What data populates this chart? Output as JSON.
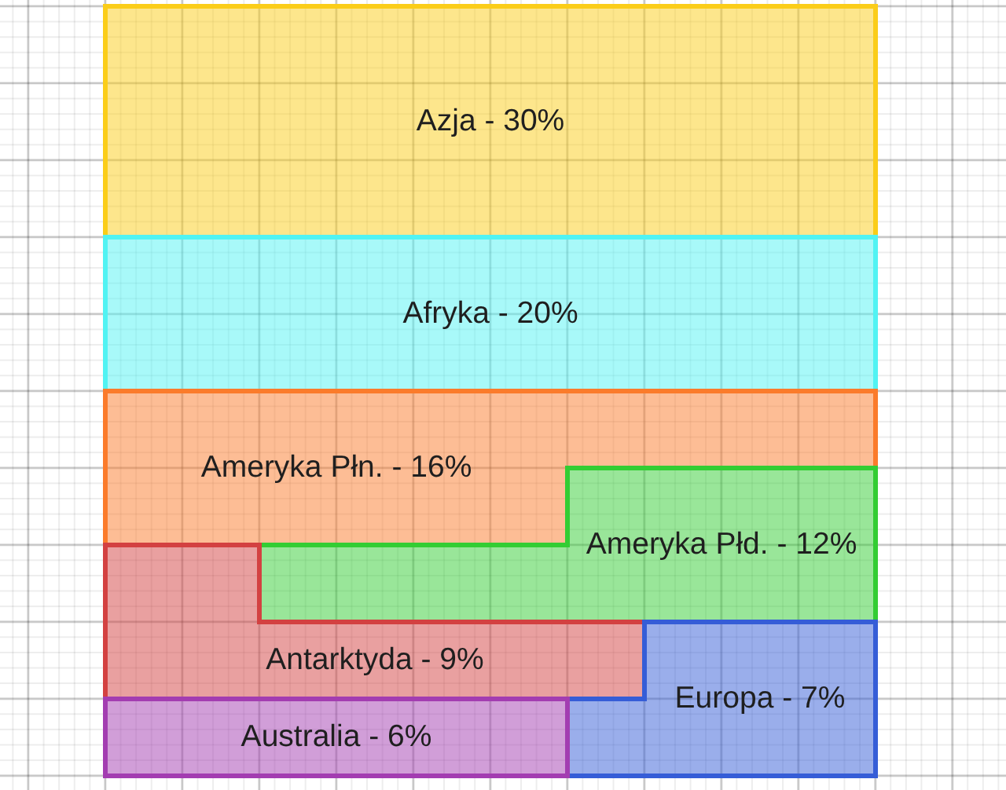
{
  "chart_data": {
    "type": "other",
    "categories": [
      "Azja -",
      "Afryka -",
      "Ameryka Płn. -",
      "Ameryka Płd. -",
      "Antarktyda -",
      "Europa -",
      "Australia -"
    ],
    "values": [
      30,
      20,
      16,
      12,
      9,
      7,
      6
    ],
    "value_labels": [
      "30%",
      "20%",
      "16%",
      "12%",
      "9%",
      "7%",
      "6%"
    ],
    "colors": [
      "#fde68c",
      "#a8f9f9",
      "#fdbd95",
      "#99e699",
      "#e9a0a0",
      "#9aaeeb",
      "#d19ed8"
    ]
  }
}
